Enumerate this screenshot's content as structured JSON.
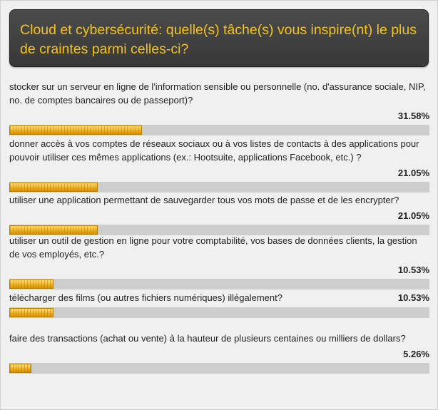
{
  "poll": {
    "title": "Cloud et cybersécurité: quelle(s) tâche(s) vous inspire(nt) le plus de craintes parmi celles-ci?",
    "accent_color": "#f5c318",
    "bar_color": "#f3b11c",
    "track_color": "#cdcdcd",
    "answers": [
      {
        "label": "stocker sur un serveur en ligne de l'information sensible ou personnelle (no. d'assurance sociale, NIP, no. de comptes bancaires ou de passeport)?",
        "percent_label": "31.58%",
        "percent": 31.58
      },
      {
        "label": "donner accès à vos comptes de réseaux sociaux ou à vos listes de contacts à des applications pour pouvoir utiliser ces mêmes applications (ex.: Hootsuite, applications Facebook, etc.) ?",
        "percent_label": "21.05%",
        "percent": 21.05
      },
      {
        "label": "utiliser une application permettant de sauvegarder tous vos mots de passe et de les encrypter?",
        "percent_label": "21.05%",
        "percent": 21.05
      },
      {
        "label": "utiliser un outil de gestion en ligne pour votre comptabilité, vos bases de données clients, la gestion de vos employés, etc.?",
        "percent_label": "10.53%",
        "percent": 10.53
      },
      {
        "label": "télécharger des films (ou autres fichiers numériques) illégalement?",
        "percent_label": "10.53%",
        "percent": 10.53
      },
      {
        "label": "faire des transactions (achat ou vente) à la hauteur de plusieurs centaines ou milliers de dollars?",
        "percent_label": "5.26%",
        "percent": 5.26
      }
    ]
  }
}
